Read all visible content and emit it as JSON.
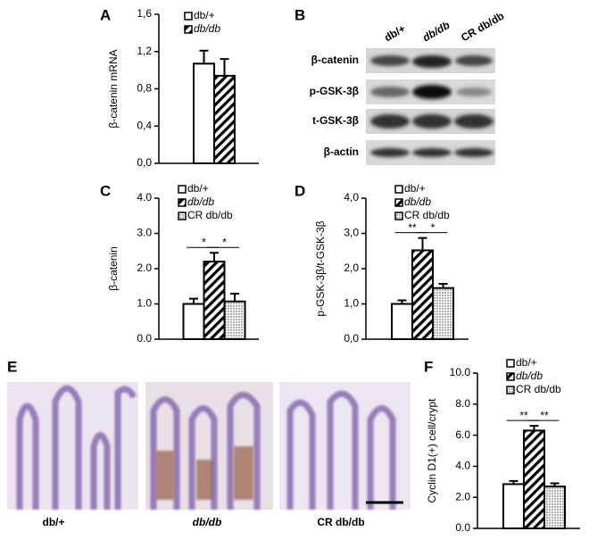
{
  "panel_labels": [
    "A",
    "B",
    "C",
    "D",
    "E",
    "F"
  ],
  "blot": {
    "lanes": [
      "db/+",
      "db/db",
      "CR db/db"
    ],
    "rows": [
      "β-catenin",
      "p-GSK-3β",
      "t-GSK-3β",
      "β-actin"
    ]
  },
  "histology": {
    "labels": [
      "db/+",
      "db/db",
      "CR db/db"
    ]
  },
  "chart_data": [
    {
      "type": "bar",
      "ylabel": "β-catenin mRNA",
      "categories": [
        null
      ],
      "series": [
        {
          "name": "db/+",
          "color": "#ffffff",
          "pattern": "none",
          "values": [
            1.07
          ],
          "errors": [
            0.14
          ]
        },
        {
          "name": "db/db",
          "color": "#000000",
          "pattern": "hatch",
          "values": [
            0.94
          ],
          "errors": [
            0.18
          ]
        }
      ],
      "ylim": [
        0,
        1.6
      ],
      "yticks": [
        {
          "value": 0,
          "label": "0,0"
        },
        {
          "value": 0.4,
          "label": "0,4"
        },
        {
          "value": 0.8,
          "label": "0,8"
        },
        {
          "value": 1.2,
          "label": "1,2"
        },
        {
          "value": 1.6,
          "label": "1,6"
        }
      ],
      "significance": []
    },
    {
      "type": "bar",
      "ylabel": "β-catenin",
      "categories": [
        null
      ],
      "series": [
        {
          "name": "db/+",
          "color": "#ffffff",
          "pattern": "none",
          "values": [
            1.0
          ],
          "errors": [
            0.15
          ]
        },
        {
          "name": "db/db",
          "color": "#000000",
          "pattern": "hatch",
          "values": [
            2.2
          ],
          "errors": [
            0.25
          ]
        },
        {
          "name": "CR db/db",
          "color": "#000000",
          "pattern": "dots",
          "values": [
            1.07
          ],
          "errors": [
            0.22
          ]
        }
      ],
      "ylim": [
        0,
        4
      ],
      "yticks": [
        {
          "value": 0,
          "label": "0.0"
        },
        {
          "value": 1,
          "label": "1.0"
        },
        {
          "value": 2,
          "label": "2.0"
        },
        {
          "value": 3,
          "label": "3.0"
        },
        {
          "value": 4,
          "label": "4.0"
        }
      ],
      "significance": [
        "*",
        "*"
      ]
    },
    {
      "type": "bar",
      "ylabel": "p-GSK-3β/t-GSK-3β",
      "categories": [
        null
      ],
      "series": [
        {
          "name": "db/+",
          "color": "#ffffff",
          "pattern": "none",
          "values": [
            1.0
          ],
          "errors": [
            0.1
          ]
        },
        {
          "name": "db/db",
          "color": "#000000",
          "pattern": "hatch",
          "values": [
            2.52
          ],
          "errors": [
            0.35
          ]
        },
        {
          "name": "CR db/db",
          "color": "#000000",
          "pattern": "dots",
          "values": [
            1.45
          ],
          "errors": [
            0.12
          ]
        }
      ],
      "ylim": [
        0,
        4
      ],
      "yticks": [
        {
          "value": 0,
          "label": "0,0"
        },
        {
          "value": 1,
          "label": "1,0"
        },
        {
          "value": 2,
          "label": "2,0"
        },
        {
          "value": 3,
          "label": "3,0"
        },
        {
          "value": 4,
          "label": "4,0"
        }
      ],
      "significance": [
        "**",
        "*"
      ]
    },
    {
      "type": "bar",
      "ylabel": "Cyclin D1(+) cell/crypt",
      "categories": [
        null
      ],
      "series": [
        {
          "name": "db/+",
          "color": "#ffffff",
          "pattern": "none",
          "values": [
            2.85
          ],
          "errors": [
            0.2
          ]
        },
        {
          "name": "db/db",
          "color": "#000000",
          "pattern": "hatch",
          "values": [
            6.3
          ],
          "errors": [
            0.3
          ]
        },
        {
          "name": "CR db/db",
          "color": "#000000",
          "pattern": "dots",
          "values": [
            2.7
          ],
          "errors": [
            0.2
          ]
        }
      ],
      "ylim": [
        0,
        10
      ],
      "yticks": [
        {
          "value": 0,
          "label": "0.0"
        },
        {
          "value": 2,
          "label": "2.0"
        },
        {
          "value": 4,
          "label": "4.0"
        },
        {
          "value": 6,
          "label": "6.0"
        },
        {
          "value": 8,
          "label": "8.0"
        },
        {
          "value": 10,
          "label": "10.0"
        }
      ],
      "significance": [
        "**",
        "**"
      ]
    }
  ]
}
